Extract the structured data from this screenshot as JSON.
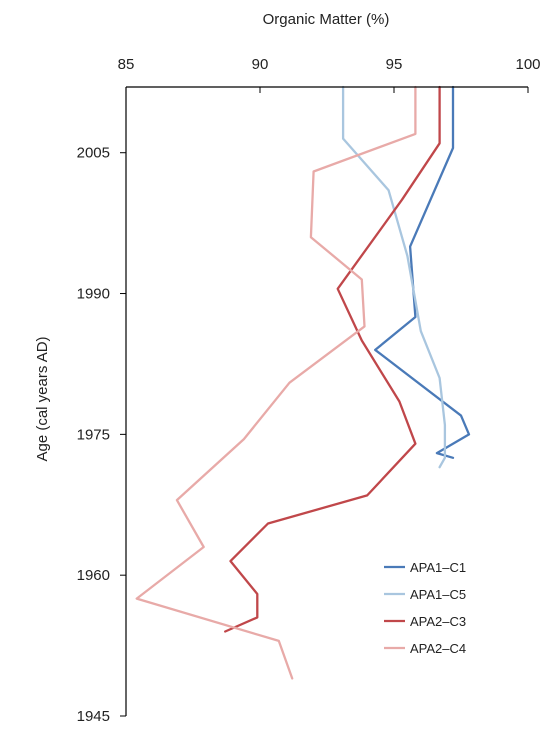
{
  "chart_data": {
    "type": "line",
    "title": "",
    "xlabel": "Organic Matter (%)",
    "ylabel": "Age (cal years AD)",
    "xlim": [
      85,
      100
    ],
    "ylim": [
      1945,
      2012
    ],
    "y_inverted": true,
    "x_axis_position": "top",
    "x_ticks": [
      85,
      90,
      95,
      100
    ],
    "y_ticks": [
      1945,
      1960,
      1975,
      1990,
      2005
    ],
    "grid": false,
    "legend_position": "lower-right",
    "series": [
      {
        "name": "APA1–C1",
        "color": "#4a7ab8",
        "points": [
          [
            97.2,
            2012
          ],
          [
            97.2,
            2005.5
          ],
          [
            95.6,
            1995
          ],
          [
            95.8,
            1987.5
          ],
          [
            94.3,
            1984
          ],
          [
            97.5,
            1977
          ],
          [
            97.8,
            1975
          ],
          [
            96.6,
            1973
          ],
          [
            97.2,
            1972.5
          ]
        ]
      },
      {
        "name": "APA1–C5",
        "color": "#a9c6df",
        "points": [
          [
            93.1,
            2012
          ],
          [
            93.1,
            2006.5
          ],
          [
            94.8,
            2001
          ],
          [
            95.5,
            1994
          ],
          [
            96.0,
            1986
          ],
          [
            96.7,
            1981
          ],
          [
            96.9,
            1976
          ],
          [
            96.9,
            1974.5
          ],
          [
            96.9,
            1972.5
          ],
          [
            96.7,
            1971.5
          ]
        ]
      },
      {
        "name": "APA2–C3",
        "color": "#c0474a",
        "points": [
          [
            96.7,
            2012
          ],
          [
            96.7,
            2006
          ],
          [
            95.3,
            2000
          ],
          [
            92.9,
            1990.5
          ],
          [
            93.8,
            1985
          ],
          [
            95.2,
            1978.5
          ],
          [
            95.8,
            1974
          ],
          [
            94.0,
            1968.5
          ],
          [
            90.3,
            1965.5
          ],
          [
            88.9,
            1961.5
          ],
          [
            89.9,
            1958
          ],
          [
            89.9,
            1955.5
          ],
          [
            88.7,
            1954
          ]
        ]
      },
      {
        "name": "APA2–C4",
        "color": "#e8aaa8",
        "points": [
          [
            95.8,
            2012
          ],
          [
            95.8,
            2007
          ],
          [
            92.0,
            2003
          ],
          [
            91.9,
            1996
          ],
          [
            93.8,
            1991.5
          ],
          [
            93.9,
            1986.5
          ],
          [
            91.1,
            1980.5
          ],
          [
            89.4,
            1974.5
          ],
          [
            86.9,
            1968
          ],
          [
            87.9,
            1963
          ],
          [
            85.4,
            1957.5
          ],
          [
            90.7,
            1953
          ],
          [
            91.2,
            1949
          ]
        ]
      }
    ]
  }
}
